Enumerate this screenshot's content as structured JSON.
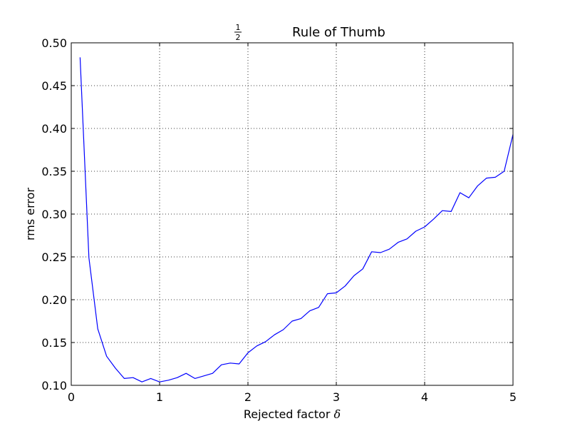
{
  "chart_data": {
    "type": "line",
    "title": "Rule of Thumb",
    "title_fraction": {
      "numerator": "1",
      "denominator": "2"
    },
    "xlabel": "Rejected factor",
    "xlabel_symbol": "δ",
    "ylabel": "rms error",
    "xlim": [
      0,
      5
    ],
    "ylim": [
      0.1,
      0.5
    ],
    "xticks": [
      0,
      1,
      2,
      3,
      4,
      5
    ],
    "xtick_labels": [
      "0",
      "1",
      "2",
      "3",
      "4",
      "5"
    ],
    "yticks": [
      0.1,
      0.15,
      0.2,
      0.25,
      0.3,
      0.35,
      0.4,
      0.45,
      0.5
    ],
    "ytick_labels": [
      "0.10",
      "0.15",
      "0.20",
      "0.25",
      "0.30",
      "0.35",
      "0.40",
      "0.45",
      "0.50"
    ],
    "grid": true,
    "line_color": "#0000ff",
    "series": [
      {
        "x": [
          0.1,
          0.2,
          0.3,
          0.4,
          0.5,
          0.6,
          0.7,
          0.8,
          0.9,
          1.0,
          1.1,
          1.2,
          1.3,
          1.4,
          1.5,
          1.6,
          1.7,
          1.8,
          1.9,
          2.0,
          2.1,
          2.2,
          2.3,
          2.4,
          2.5,
          2.6,
          2.7,
          2.8,
          2.9,
          3.0,
          3.1,
          3.2,
          3.3,
          3.4,
          3.5,
          3.6,
          3.7,
          3.8,
          3.9,
          4.0,
          4.1,
          4.2,
          4.3,
          4.4,
          4.5,
          4.6,
          4.7,
          4.8,
          4.9,
          5.0
        ],
        "y": [
          0.483,
          0.249,
          0.166,
          0.134,
          0.12,
          0.108,
          0.109,
          0.104,
          0.108,
          0.104,
          0.106,
          0.109,
          0.114,
          0.108,
          0.111,
          0.114,
          0.124,
          0.126,
          0.125,
          0.138,
          0.146,
          0.151,
          0.159,
          0.165,
          0.175,
          0.178,
          0.187,
          0.191,
          0.207,
          0.208,
          0.216,
          0.228,
          0.236,
          0.256,
          0.255,
          0.259,
          0.267,
          0.271,
          0.28,
          0.285,
          0.294,
          0.304,
          0.303,
          0.325,
          0.319,
          0.333,
          0.342,
          0.343,
          0.35,
          0.393
        ]
      }
    ]
  }
}
